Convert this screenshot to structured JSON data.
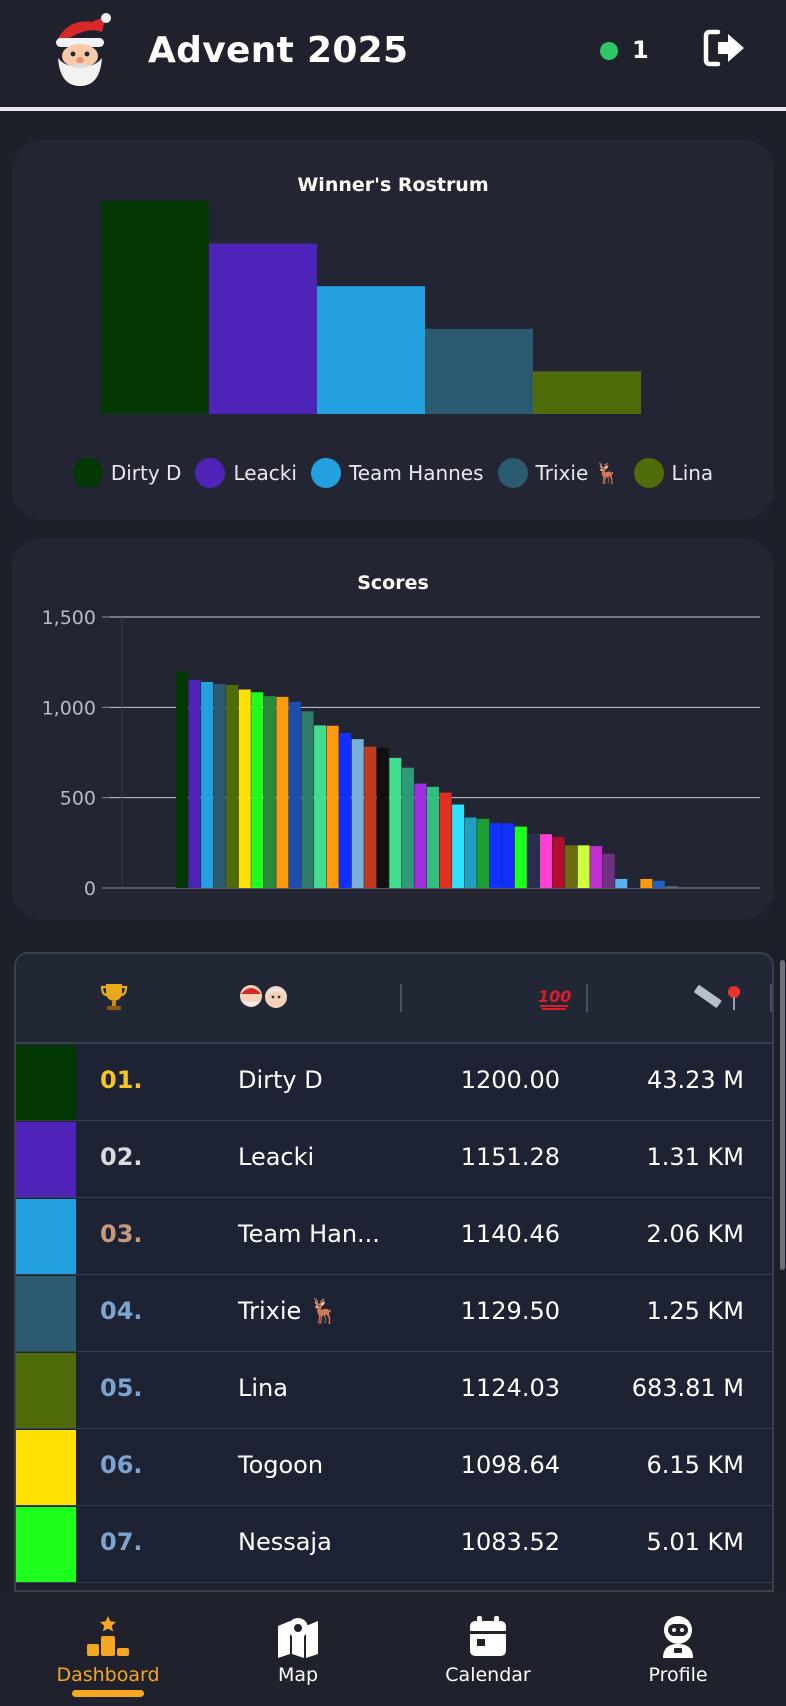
{
  "header": {
    "title": "Advent 2025",
    "online_count": "1",
    "logo_icon": "santa-icon",
    "logout_icon": "logout-icon"
  },
  "rostrum": {
    "title": "Winner's Rostrum"
  },
  "scores": {
    "title": "Scores"
  },
  "chart_data": [
    {
      "type": "bar",
      "title": "Winner's Rostrum",
      "categories": [
        "Dirty D",
        "Leacki",
        "Team Hannes",
        "Trixie 🦌",
        "Lina"
      ],
      "values": [
        5,
        4,
        3,
        2,
        1
      ],
      "colors": [
        "#033704",
        "#4e24b8",
        "#22a0e0",
        "#2c5a6e",
        "#4f6b0a"
      ],
      "legend": "bottom",
      "grid": false
    },
    {
      "type": "bar",
      "title": "Scores",
      "ylim": [
        0,
        1500
      ],
      "yticks": [
        "0",
        "500",
        "1,000",
        "1,500"
      ],
      "grid": true,
      "values": [
        1200,
        1151.28,
        1140.46,
        1129.5,
        1124.03,
        1098.64,
        1083.52,
        1062,
        1058,
        1030,
        978,
        900,
        898,
        858,
        824,
        782,
        777,
        720,
        666,
        578,
        560,
        528,
        462,
        390,
        383,
        360,
        358,
        340,
        300,
        298,
        282,
        236,
        236,
        232,
        190,
        50,
        3,
        50,
        40,
        10
      ],
      "colors": [
        "#033704",
        "#4e24b8",
        "#22a0e0",
        "#2c5a6e",
        "#4f6b0a",
        "#ffe000",
        "#1dff1d",
        "#2a8a3a",
        "#ff9a10",
        "#1a4fb0",
        "#2e7d6a",
        "#3fdf8f",
        "#ff9a10",
        "#1030ff",
        "#7ab0d8",
        "#c03a20",
        "#101010",
        "#3fdf8f",
        "#2e9a7a",
        "#a030e0",
        "#2fbf7f",
        "#e03020",
        "#30e0ff",
        "#20a0c0",
        "#1aa030",
        "#1030ff",
        "#1030ff",
        "#1dff1d",
        "#2a2f50",
        "#ff40d0",
        "#b01030",
        "#6a6a10",
        "#d0ff40",
        "#c030d0",
        "#703080",
        "#5ab0f0",
        "#232632",
        "#ff9a10",
        "#2060c0",
        "#5a6a7a"
      ]
    }
  ],
  "table": {
    "headers": {
      "rank_icon": "trophy-icon",
      "name_icon": "santa-couple-icon",
      "score_icon": "hundred-points-icon",
      "distance_icon": "ruler-pin-icon"
    },
    "rows": [
      {
        "rank": "01.",
        "name": "Dirty D",
        "score": "1200.00",
        "distance": "43.23 M",
        "color": "#033704",
        "rank_color": "#f3c623"
      },
      {
        "rank": "02.",
        "name": "Leacki",
        "score": "1151.28",
        "distance": "1.31 KM",
        "color": "#4e24b8",
        "rank_color": "#d8dbe2"
      },
      {
        "rank": "03.",
        "name": "Team Han...",
        "score": "1140.46",
        "distance": "2.06 KM",
        "color": "#22a0e0",
        "rank_color": "#c79a7d"
      },
      {
        "rank": "04.",
        "name": "Trixie 🦌",
        "score": "1129.50",
        "distance": "1.25 KM",
        "color": "#2c5a6e",
        "rank_color": "#7da3cf"
      },
      {
        "rank": "05.",
        "name": "Lina",
        "score": "1124.03",
        "distance": "683.81 M",
        "color": "#4f6b0a",
        "rank_color": "#7da3cf"
      },
      {
        "rank": "06.",
        "name": "Togoon",
        "score": "1098.64",
        "distance": "6.15 KM",
        "color": "#ffe000",
        "rank_color": "#7da3cf"
      },
      {
        "rank": "07.",
        "name": "Nessaja",
        "score": "1083.52",
        "distance": "5.01 KM",
        "color": "#1dff1d",
        "rank_color": "#7da3cf"
      }
    ]
  },
  "nav": {
    "items": [
      {
        "label": "Dashboard",
        "icon": "podium-icon",
        "active": true
      },
      {
        "label": "Map",
        "icon": "map-icon",
        "active": false
      },
      {
        "label": "Calendar",
        "icon": "calendar-icon",
        "active": false
      },
      {
        "label": "Profile",
        "icon": "astronaut-icon",
        "active": false
      }
    ]
  },
  "colors": {
    "accent": "#f5a623",
    "online": "#2dc766",
    "background": "#1d2029",
    "card": "#232632"
  }
}
